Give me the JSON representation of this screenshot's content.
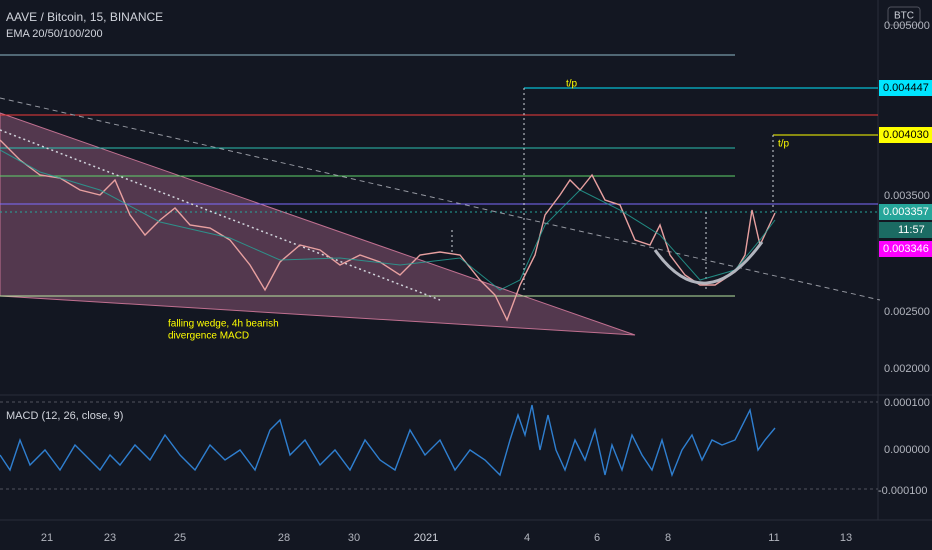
{
  "header": {
    "symbol": "AAVE / Bitcoin, 15, BINANCE",
    "indicator": "EMA 20/50/100/200",
    "currency": "BTC"
  },
  "price_axis": {
    "labels": [
      "0.005000",
      "0.003500",
      "0.002500",
      "0.002000"
    ]
  },
  "price_tags": [
    {
      "label": "0.004447",
      "color": "#00e5ff"
    },
    {
      "label": "0.004030",
      "color": "#ffff00"
    },
    {
      "label": "0.003357",
      "color": "#26a69a"
    },
    {
      "label": "11:57",
      "color": "#1b6b63"
    },
    {
      "label": "0.003346",
      "color": "#ff00ff"
    }
  ],
  "annotations": {
    "tp_1": "t/p",
    "tp_2": "t/p",
    "wedge_1": "falling wedge, 4h bearish",
    "wedge_2": "divergence MACD"
  },
  "macd": {
    "title": "MACD (12, 26, close, 9)",
    "labels": [
      "0.000100",
      "0.000000",
      "-0.000100"
    ]
  },
  "time_axis": {
    "labels": [
      "21",
      "23",
      "25",
      "28",
      "30",
      "2021",
      "4",
      "6",
      "8",
      "11",
      "13"
    ]
  }
}
